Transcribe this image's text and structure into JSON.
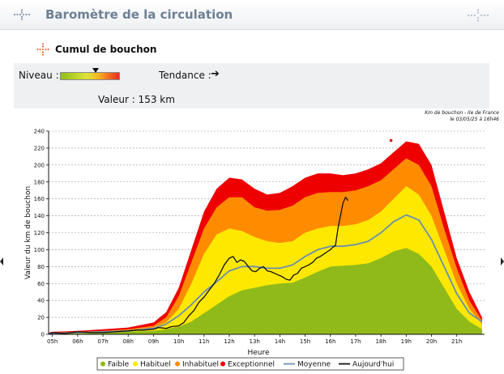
{
  "header": {
    "title": "Baromètre de la circulation",
    "icon_left": "dotted-cross-icon",
    "icon_right": "dotted-cross-icon"
  },
  "section": {
    "title": "Cumul de bouchon",
    "icon": "dotted-cross-icon"
  },
  "status": {
    "niveau_label": "Niveau :",
    "niveau_fraction": 0.6,
    "tendance_label": "Tendance :",
    "tendance_arrow": "➔",
    "tendance_icon": "arrow-right-icon",
    "valeur_text": "Valeur : 153 km"
  },
  "note": {
    "line1": "Km de bouchon - Ile de France",
    "line2": "le 03/05/25 à 16h46"
  },
  "colors": {
    "faible": "#8fba1a",
    "habituel": "#ffe800",
    "inhabituel": "#ff8c00",
    "exceptionnel": "#ee0000",
    "moyenne": "#6a8eb2",
    "aujourdhui": "#111111"
  },
  "chart_data": {
    "type": "area",
    "title": "",
    "xlabel": "Heure",
    "ylabel": "Valeur du km de bouchon",
    "x_ticks": [
      "05h",
      "06h",
      "07h",
      "08h",
      "09h",
      "10h",
      "11h",
      "12h",
      "13h",
      "14h",
      "15h",
      "16h",
      "17h",
      "18h",
      "19h",
      "20h",
      "21h"
    ],
    "xlim": [
      4.85,
      22.1
    ],
    "ylim": [
      0,
      240
    ],
    "y_ticks": [
      0,
      20,
      40,
      60,
      80,
      100,
      120,
      140,
      160,
      180,
      200,
      220,
      240
    ],
    "grid": true,
    "legend_position": "bottom",
    "band_x": [
      4.85,
      5,
      6,
      7,
      8,
      9,
      9.5,
      10,
      10.5,
      11,
      11.5,
      12,
      12.5,
      13,
      13.5,
      14,
      14.5,
      15,
      15.5,
      16,
      16.5,
      17,
      17.5,
      18,
      18.5,
      19,
      19.5,
      20,
      20.5,
      21,
      21.5,
      22
    ],
    "bands": [
      {
        "name": "Faible",
        "values": [
          0,
          0,
          1,
          2,
          3,
          4,
          6,
          9,
          15,
          25,
          35,
          45,
          52,
          55,
          58,
          60,
          61,
          67,
          74,
          80,
          81,
          82,
          84,
          90,
          98,
          102,
          95,
          80,
          55,
          30,
          15,
          6
        ]
      },
      {
        "name": "Habituel",
        "values": [
          0,
          1,
          2,
          3,
          5,
          8,
          14,
          30,
          60,
          95,
          118,
          125,
          122,
          115,
          110,
          108,
          110,
          120,
          125,
          128,
          128,
          130,
          135,
          145,
          160,
          175,
          165,
          140,
          100,
          60,
          30,
          12
        ]
      },
      {
        "name": "Inhabituel",
        "values": [
          1,
          2,
          3,
          4,
          6,
          10,
          20,
          45,
          85,
          125,
          150,
          162,
          162,
          150,
          146,
          147,
          152,
          162,
          167,
          168,
          168,
          170,
          175,
          182,
          195,
          208,
          200,
          175,
          125,
          78,
          40,
          16
        ]
      },
      {
        "name": "Exceptionnel",
        "values": [
          2,
          3,
          4,
          6,
          8,
          14,
          26,
          55,
          100,
          145,
          172,
          185,
          183,
          172,
          165,
          167,
          175,
          185,
          190,
          190,
          188,
          190,
          195,
          202,
          215,
          228,
          225,
          200,
          145,
          90,
          50,
          20
        ]
      }
    ],
    "series": [
      {
        "name": "Moyenne",
        "x": [
          4.85,
          5,
          6,
          7,
          8,
          9,
          9.5,
          10,
          10.5,
          11,
          11.5,
          12,
          12.5,
          13,
          13.5,
          14,
          14.5,
          15,
          15.5,
          16,
          16.5,
          17,
          17.5,
          18,
          18.5,
          19,
          19.5,
          20,
          20.5,
          21,
          21.5,
          22
        ],
        "values": [
          1,
          1,
          2,
          3,
          4,
          7,
          12,
          22,
          35,
          50,
          62,
          75,
          80,
          80,
          78,
          78,
          82,
          92,
          100,
          104,
          104,
          106,
          110,
          120,
          133,
          141,
          135,
          112,
          80,
          48,
          25,
          15
        ]
      },
      {
        "name": "Aujourd'hui",
        "x": [
          4.9,
          5,
          5.5,
          6,
          6.5,
          7,
          7.5,
          8,
          8.3,
          8.6,
          9,
          9.2,
          9.5,
          9.7,
          10,
          10.2,
          10.4,
          10.6,
          10.8,
          11,
          11.2,
          11.4,
          11.6,
          11.8,
          12,
          12.15,
          12.3,
          12.45,
          12.6,
          12.75,
          12.9,
          13.05,
          13.2,
          13.35,
          13.5,
          13.65,
          13.8,
          13.95,
          14.1,
          14.25,
          14.4,
          14.55,
          14.7,
          14.85,
          15,
          15.15,
          15.3,
          15.45,
          15.6,
          15.75,
          15.9,
          16,
          16.1,
          16.2,
          16.3,
          16.4,
          16.5,
          16.6,
          16.7
        ],
        "values": [
          1,
          2,
          1,
          3,
          2,
          2,
          3,
          4,
          5,
          5,
          6,
          8,
          7,
          9,
          10,
          14,
          22,
          28,
          38,
          44,
          52,
          60,
          70,
          82,
          90,
          92,
          85,
          88,
          86,
          80,
          75,
          74,
          78,
          80,
          75,
          74,
          72,
          70,
          68,
          65,
          64,
          70,
          72,
          78,
          80,
          82,
          85,
          90,
          92,
          95,
          98,
          100,
          103,
          105,
          125,
          140,
          155,
          162,
          158
        ]
      }
    ],
    "outlier": {
      "x": 18.4,
      "y": 229
    }
  },
  "legend": {
    "items": [
      {
        "label": "Faible",
        "kind": "dot",
        "color": "#8fba1a"
      },
      {
        "label": "Habituel",
        "kind": "dot",
        "color": "#ffe800"
      },
      {
        "label": "Inhabituel",
        "kind": "dot",
        "color": "#ff8c00"
      },
      {
        "label": "Exceptionnel",
        "kind": "dot",
        "color": "#ee0000"
      },
      {
        "label": "Moyenne",
        "kind": "line",
        "color": "#6a8eb2"
      },
      {
        "label": "Aujourd'hui",
        "kind": "line",
        "color": "#111111"
      }
    ]
  }
}
